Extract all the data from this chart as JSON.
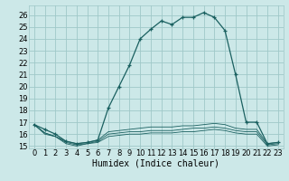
{
  "xlabel": "Humidex (Indice chaleur)",
  "bg_color": "#cce8e8",
  "grid_color": "#9fc8c8",
  "line_color": "#1a6060",
  "xlim": [
    -0.5,
    23.5
  ],
  "ylim": [
    14.8,
    26.8
  ],
  "yticks": [
    15,
    16,
    17,
    18,
    19,
    20,
    21,
    22,
    23,
    24,
    25,
    26
  ],
  "xticks": [
    0,
    1,
    2,
    3,
    4,
    5,
    6,
    7,
    8,
    9,
    10,
    11,
    12,
    13,
    14,
    15,
    16,
    17,
    18,
    19,
    20,
    21,
    22,
    23
  ],
  "main_x": [
    0,
    1,
    2,
    3,
    4,
    5,
    6,
    7,
    8,
    9,
    10,
    11,
    12,
    13,
    14,
    15,
    16,
    17,
    18,
    19,
    20,
    21,
    22,
    23
  ],
  "main_y": [
    16.8,
    16.4,
    16.0,
    15.4,
    15.2,
    15.3,
    15.5,
    18.2,
    20.0,
    21.8,
    24.0,
    24.8,
    25.5,
    25.2,
    25.8,
    25.8,
    26.2,
    25.8,
    24.7,
    21.0,
    17.0,
    17.0,
    15.2,
    15.3
  ],
  "line2_x": [
    0,
    1,
    2,
    3,
    4,
    5,
    6,
    7,
    8,
    9,
    10,
    11,
    12,
    13,
    14,
    15,
    16,
    17,
    18,
    19,
    20,
    21,
    22,
    23
  ],
  "line2_y": [
    16.8,
    16.1,
    15.8,
    15.4,
    15.2,
    15.3,
    15.5,
    16.2,
    16.3,
    16.4,
    16.5,
    16.6,
    16.6,
    16.6,
    16.7,
    16.7,
    16.8,
    16.9,
    16.8,
    16.5,
    16.4,
    16.4,
    15.2,
    15.3
  ],
  "line3_x": [
    0,
    1,
    2,
    3,
    4,
    5,
    6,
    7,
    8,
    9,
    10,
    11,
    12,
    13,
    14,
    15,
    16,
    17,
    18,
    19,
    20,
    21,
    22,
    23
  ],
  "line3_y": [
    16.8,
    16.1,
    15.8,
    15.3,
    15.1,
    15.2,
    15.4,
    16.0,
    16.1,
    16.2,
    16.2,
    16.3,
    16.3,
    16.3,
    16.4,
    16.5,
    16.5,
    16.6,
    16.5,
    16.3,
    16.2,
    16.2,
    15.1,
    15.2
  ],
  "line4_x": [
    0,
    1,
    2,
    3,
    4,
    5,
    6,
    7,
    8,
    9,
    10,
    11,
    12,
    13,
    14,
    15,
    16,
    17,
    18,
    19,
    20,
    21,
    22,
    23
  ],
  "line4_y": [
    16.8,
    16.0,
    15.8,
    15.2,
    15.0,
    15.2,
    15.3,
    15.8,
    15.9,
    16.0,
    16.0,
    16.1,
    16.1,
    16.1,
    16.2,
    16.2,
    16.3,
    16.4,
    16.3,
    16.1,
    16.0,
    16.0,
    15.0,
    15.1
  ],
  "fontsize_xlabel": 7,
  "fontsize_tick": 6
}
